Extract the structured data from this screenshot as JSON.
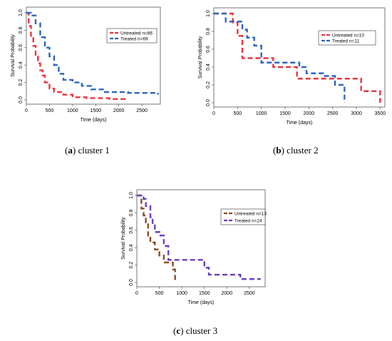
{
  "colors": {
    "untreated_12": "#e8373f",
    "treated": "#2f67c1",
    "untreated_3": "#8a4b22",
    "treated_3": "#6b3fc0"
  },
  "captions": [
    {
      "letter": "a",
      "paren_open": "(",
      "paren_close": ")",
      "text": " cluster 1"
    },
    {
      "letter": "b",
      "paren_open": "(",
      "paren_close": ")",
      "text": " cluster 2"
    },
    {
      "letter": "c",
      "paren_open": "(",
      "paren_close": ")",
      "text": " cluster 3"
    }
  ],
  "chart_data": [
    {
      "type": "line",
      "xlabel": "Time (days)",
      "ylabel": "Survival Probability",
      "xlim": [
        0,
        2900
      ],
      "ylim": [
        0,
        1
      ],
      "xticks": [
        0,
        500,
        1000,
        1500,
        2000,
        2500
      ],
      "yticks": [
        0.0,
        0.2,
        0.4,
        0.6,
        0.8,
        1.0
      ],
      "legend_position": "top-right",
      "grid": false,
      "series": [
        {
          "name": "Untreated n=86",
          "color": "#e8373f",
          "x": [
            0,
            50,
            100,
            150,
            200,
            250,
            300,
            350,
            400,
            500,
            600,
            800,
            1000,
            1300,
            1800,
            2200
          ],
          "y": [
            1.0,
            0.85,
            0.72,
            0.62,
            0.5,
            0.42,
            0.34,
            0.28,
            0.2,
            0.13,
            0.09,
            0.06,
            0.03,
            0.02,
            0.01,
            0.01
          ]
        },
        {
          "name": "Treated n=69",
          "color": "#2f67c1",
          "x": [
            0,
            100,
            200,
            300,
            400,
            500,
            600,
            700,
            800,
            1000,
            1200,
            1400,
            1700,
            2200,
            2800,
            2850
          ],
          "y": [
            1.0,
            0.97,
            0.88,
            0.72,
            0.6,
            0.5,
            0.4,
            0.3,
            0.23,
            0.2,
            0.16,
            0.12,
            0.09,
            0.08,
            0.08,
            0.06
          ]
        }
      ]
    },
    {
      "type": "line",
      "xlabel": "Time (days)",
      "ylabel": "Survival Probability",
      "xlim": [
        0,
        3600
      ],
      "ylim": [
        0,
        1
      ],
      "xticks": [
        0,
        500,
        1000,
        1500,
        2000,
        2500,
        3000,
        3500
      ],
      "yticks": [
        0.0,
        0.2,
        0.4,
        0.6,
        0.8,
        1.0
      ],
      "legend_position": "top-right",
      "grid": false,
      "series": [
        {
          "name": "Untreated n=10",
          "color": "#e8373f",
          "x": [
            0,
            400,
            500,
            600,
            1250,
            1750,
            2750,
            3100,
            3500
          ],
          "y": [
            1.0,
            0.9,
            0.75,
            0.5,
            0.4,
            0.27,
            0.27,
            0.13,
            0.0
          ]
        },
        {
          "name": "Treated n=11",
          "color": "#2f67c1",
          "x": [
            0,
            250,
            600,
            700,
            850,
            1000,
            1800,
            1950,
            2300,
            2550,
            2750
          ],
          "y": [
            1.0,
            0.91,
            0.82,
            0.73,
            0.64,
            0.45,
            0.4,
            0.33,
            0.3,
            0.2,
            0.0
          ]
        }
      ]
    },
    {
      "type": "line",
      "xlabel": "Time (days)",
      "ylabel": "Survival Probability",
      "xlim": [
        0,
        2850
      ],
      "ylim": [
        0,
        1
      ],
      "xticks": [
        0,
        500,
        1000,
        1500,
        2000,
        2500
      ],
      "yticks": [
        0.0,
        0.2,
        0.4,
        0.6,
        0.8,
        1.0
      ],
      "legend_position": "top-right",
      "grid": false,
      "series": [
        {
          "name": "Untreated n=13",
          "color": "#8a4b22",
          "x": [
            0,
            100,
            150,
            200,
            250,
            300,
            400,
            500,
            600,
            800,
            850
          ],
          "y": [
            1.0,
            0.85,
            0.77,
            0.69,
            0.54,
            0.46,
            0.38,
            0.31,
            0.23,
            0.15,
            0.0
          ]
        },
        {
          "name": "Treated n=24",
          "color": "#6b3fc0",
          "x": [
            0,
            150,
            200,
            300,
            350,
            400,
            500,
            600,
            700,
            1500,
            1600,
            2300,
            2750
          ],
          "y": [
            1.0,
            0.96,
            0.88,
            0.75,
            0.67,
            0.58,
            0.54,
            0.42,
            0.26,
            0.17,
            0.09,
            0.04,
            0.04
          ]
        }
      ]
    }
  ]
}
